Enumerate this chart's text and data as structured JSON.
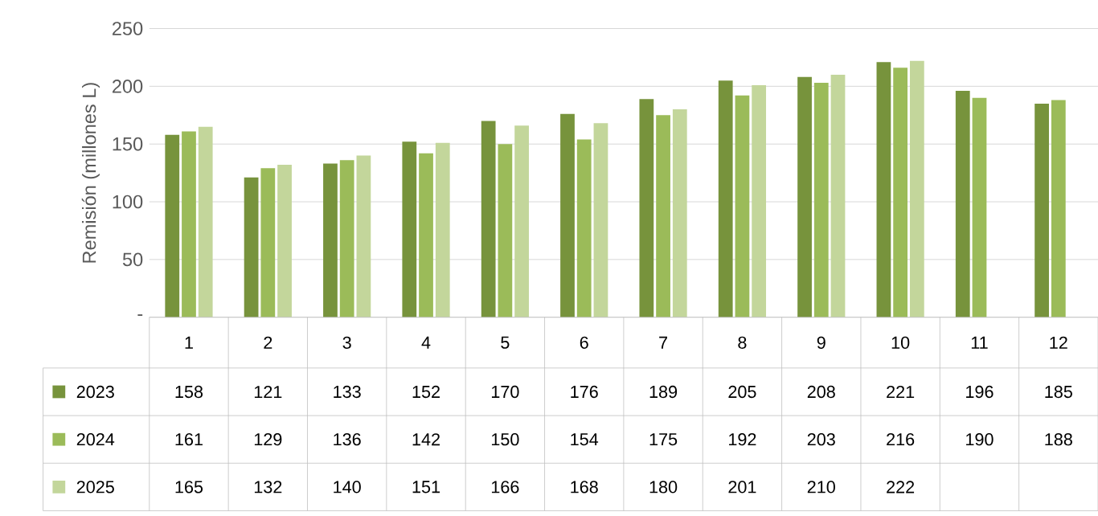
{
  "chart_data": {
    "type": "bar",
    "ylabel": "Remisión (millones L)",
    "categories": [
      "1",
      "2",
      "3",
      "4",
      "5",
      "6",
      "7",
      "8",
      "9",
      "10",
      "11",
      "12"
    ],
    "series": [
      {
        "name": "2023",
        "color": "#77933c",
        "values": [
          158,
          121,
          133,
          152,
          170,
          176,
          189,
          205,
          208,
          221,
          196,
          185
        ]
      },
      {
        "name": "2024",
        "color": "#9bbb59",
        "values": [
          161,
          129,
          136,
          142,
          150,
          154,
          175,
          192,
          203,
          216,
          190,
          188
        ]
      },
      {
        "name": "2025",
        "color": "#c3d69b",
        "values": [
          165,
          132,
          140,
          151,
          166,
          168,
          180,
          201,
          210,
          222,
          null,
          null
        ]
      }
    ],
    "ylim": [
      0,
      250
    ],
    "yticks": [
      {
        "value": 0,
        "label": "-"
      },
      50,
      100,
      150,
      200,
      250
    ],
    "grid": "y",
    "legend": "bottom",
    "data_labels": true
  }
}
